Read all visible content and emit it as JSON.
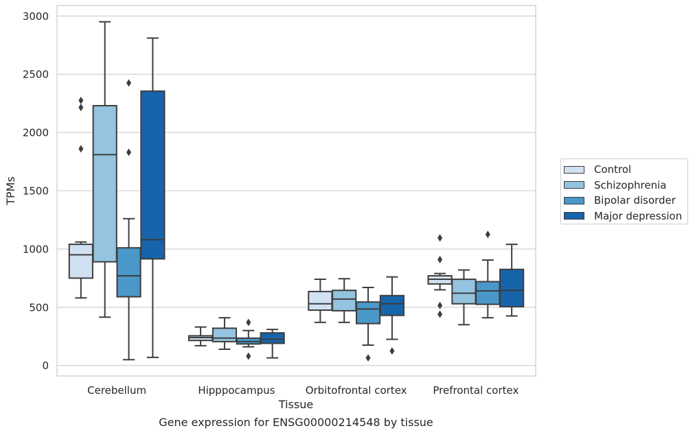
{
  "chart_data": {
    "type": "box",
    "title": "",
    "caption": "Gene expression for ENSG00000214548 by tissue",
    "xlabel": "Tissue",
    "ylabel": "TPMs",
    "ylim": [
      -90,
      3090
    ],
    "yticks": [
      0,
      500,
      1000,
      1500,
      2000,
      2500,
      3000
    ],
    "grid": true,
    "legend_position": "right",
    "categories": [
      "Cerebellum",
      "Hipppocampus",
      "Orbitofrontal cortex",
      "Prefrontal cortex"
    ],
    "series": [
      {
        "name": "Control",
        "color": "#d0e1f2",
        "boxes": [
          {
            "whisker_low": 580,
            "q1": 750,
            "median": 950,
            "q3": 1040,
            "whisker_high": 1060,
            "outliers": [
              1860,
              2215,
              2275
            ]
          },
          {
            "whisker_low": 170,
            "q1": 215,
            "median": 240,
            "q3": 255,
            "whisker_high": 330,
            "outliers": []
          },
          {
            "whisker_low": 370,
            "q1": 475,
            "median": 530,
            "q3": 635,
            "whisker_high": 740,
            "outliers": []
          },
          {
            "whisker_low": 650,
            "q1": 700,
            "median": 740,
            "q3": 770,
            "whisker_high": 790,
            "outliers": [
              440,
              515,
              910,
              1095
            ]
          }
        ]
      },
      {
        "name": "Schizophrenia",
        "color": "#94c4df",
        "boxes": [
          {
            "whisker_low": 415,
            "q1": 890,
            "median": 1810,
            "q3": 2230,
            "whisker_high": 2950,
            "outliers": []
          },
          {
            "whisker_low": 140,
            "q1": 205,
            "median": 235,
            "q3": 320,
            "whisker_high": 410,
            "outliers": []
          },
          {
            "whisker_low": 370,
            "q1": 470,
            "median": 570,
            "q3": 645,
            "whisker_high": 745,
            "outliers": []
          },
          {
            "whisker_low": 350,
            "q1": 530,
            "median": 620,
            "q3": 740,
            "whisker_high": 820,
            "outliers": []
          }
        ]
      },
      {
        "name": "Bipolar disorder",
        "color": "#4a98c9",
        "boxes": [
          {
            "whisker_low": 50,
            "q1": 590,
            "median": 770,
            "q3": 1010,
            "whisker_high": 1260,
            "outliers": [
              1830,
              2425
            ]
          },
          {
            "whisker_low": 160,
            "q1": 185,
            "median": 205,
            "q3": 235,
            "whisker_high": 300,
            "outliers": [
              80,
              370
            ]
          },
          {
            "whisker_low": 175,
            "q1": 360,
            "median": 485,
            "q3": 545,
            "whisker_high": 670,
            "outliers": [
              65
            ]
          },
          {
            "whisker_low": 410,
            "q1": 525,
            "median": 640,
            "q3": 720,
            "whisker_high": 905,
            "outliers": [
              1125
            ]
          }
        ]
      },
      {
        "name": "Major depression",
        "color": "#1764ab",
        "boxes": [
          {
            "whisker_low": 70,
            "q1": 915,
            "median": 1080,
            "q3": 2355,
            "whisker_high": 2810,
            "outliers": []
          },
          {
            "whisker_low": 65,
            "q1": 190,
            "median": 225,
            "q3": 280,
            "whisker_high": 310,
            "outliers": []
          },
          {
            "whisker_low": 225,
            "q1": 430,
            "median": 530,
            "q3": 600,
            "whisker_high": 760,
            "outliers": [
              125
            ]
          },
          {
            "whisker_low": 425,
            "q1": 505,
            "median": 645,
            "q3": 825,
            "whisker_high": 1040,
            "outliers": []
          }
        ]
      }
    ]
  }
}
